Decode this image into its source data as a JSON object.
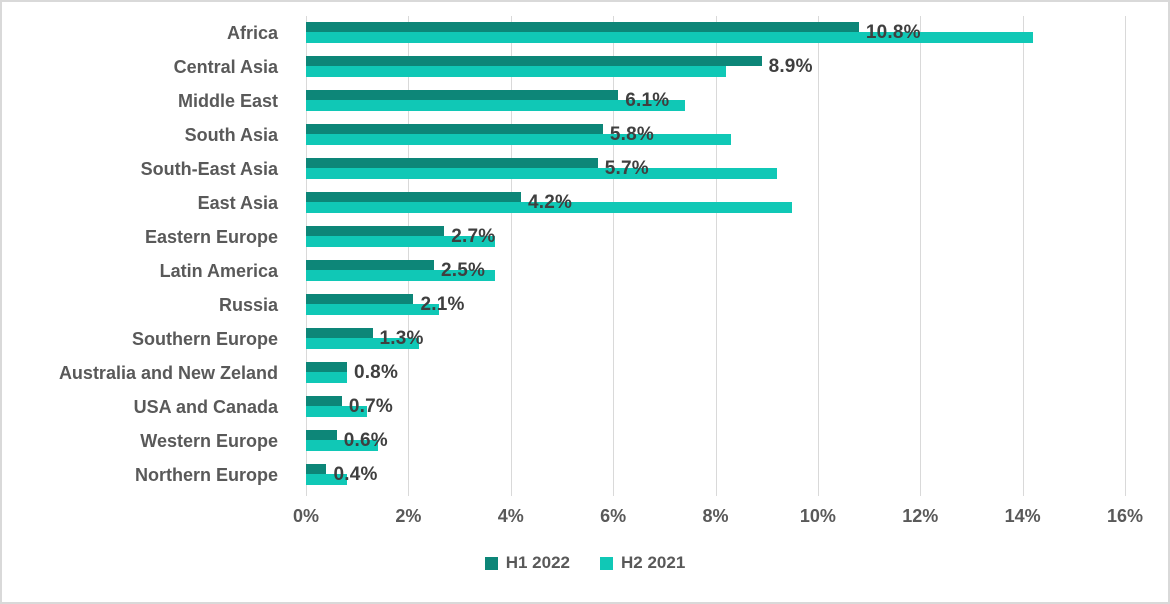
{
  "window": {
    "background": "#ffffff",
    "border_color": "#d9d9d9"
  },
  "chart_data": {
    "type": "bar",
    "orientation": "horizontal",
    "title": "",
    "categories": [
      "Africa",
      "Central Asia",
      "Middle East",
      "South Asia",
      "South-East Asia",
      "East Asia",
      "Eastern Europe",
      "Latin America",
      "Russia",
      "Southern Europe",
      "Australia and New Zeland",
      "USA and Canada",
      "Western Europe",
      "Northern Europe"
    ],
    "series": [
      {
        "name": "H1 2022",
        "color": "#0d8678",
        "values": [
          10.8,
          8.9,
          6.1,
          5.8,
          5.7,
          4.2,
          2.7,
          2.5,
          2.1,
          1.3,
          0.8,
          0.7,
          0.6,
          0.4
        ],
        "data_labels": [
          "10.8%",
          "8.9%",
          "6.1%",
          "5.8%",
          "5.7%",
          "4.2%",
          "2.7%",
          "2.5%",
          "2.1%",
          "1.3%",
          "0.8%",
          "0.7%",
          "0.6%",
          "0.4%"
        ]
      },
      {
        "name": "H2 2021",
        "color": "#10c8b6",
        "values": [
          14.2,
          8.2,
          7.4,
          8.3,
          9.2,
          9.5,
          3.7,
          3.7,
          2.6,
          2.2,
          0.8,
          1.2,
          1.4,
          0.8
        ]
      }
    ],
    "xlim": [
      0,
      16
    ],
    "x_tick_labels": [
      "0%",
      "2%",
      "4%",
      "6%",
      "8%",
      "10%",
      "12%",
      "14%",
      "16%"
    ],
    "x_tick_values": [
      0,
      2,
      4,
      6,
      8,
      10,
      12,
      14,
      16
    ],
    "grid": true,
    "grid_color": "#d9d9d9",
    "axis_label_color": "#595959",
    "data_label_color": "#3f3f3f",
    "legend_position": "bottom",
    "legend": [
      "H1 2022",
      "H2 2021"
    ]
  }
}
